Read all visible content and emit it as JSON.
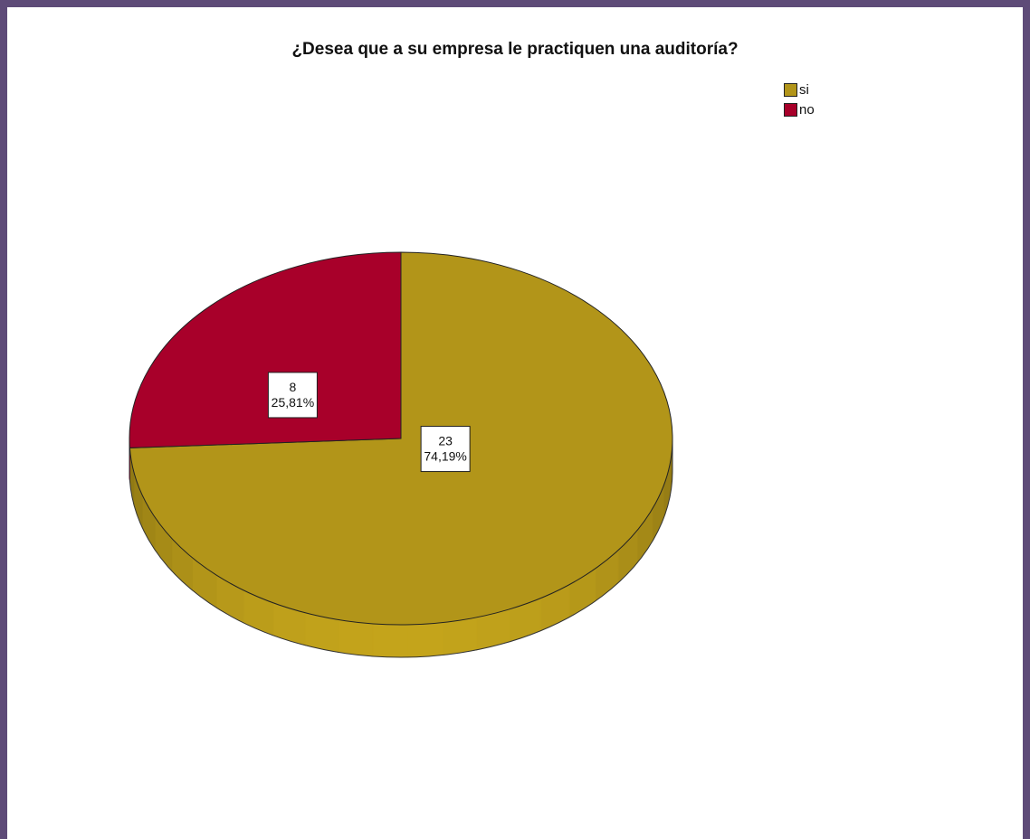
{
  "chart_data": {
    "type": "pie",
    "title": "¿Desea que a su empresa le practiquen una auditoría?",
    "slices": [
      {
        "name": "si",
        "count": 23,
        "percent_label": "74,19%",
        "color": "#b29519"
      },
      {
        "name": "no",
        "count": 8,
        "percent_label": "25,81%",
        "color": "#a8002a"
      }
    ],
    "legend_position": "top-right",
    "three_d": true
  },
  "colors": {
    "frame": "#5e4b78"
  }
}
